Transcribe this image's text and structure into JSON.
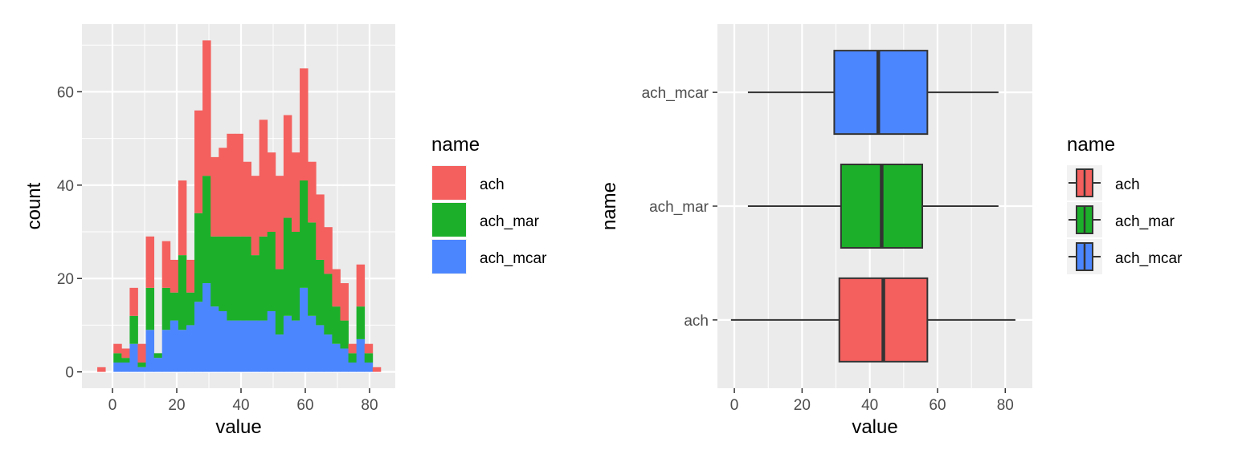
{
  "chart_data": [
    {
      "type": "bar",
      "subtype": "stacked-histogram",
      "xlabel": "value",
      "ylabel": "count",
      "xlim": [
        -9.5,
        88
      ],
      "ylim": [
        -3.5,
        74.5
      ],
      "x_ticks": [
        0,
        20,
        40,
        60,
        80
      ],
      "y_ticks": [
        0,
        20,
        40,
        60
      ],
      "grid": true,
      "bin_width": 2.52,
      "bin_start": -4.73,
      "stack_order": [
        "ach_mcar",
        "ach_mar",
        "ach"
      ],
      "series": [
        {
          "name": "ach_mcar",
          "color": "#4C86FF",
          "values": [
            0,
            0,
            2,
            2,
            6,
            1,
            9,
            3,
            9,
            11,
            9,
            10,
            15,
            19,
            14,
            13,
            11,
            11,
            11,
            11,
            11,
            13,
            8,
            12,
            11,
            18,
            12,
            10,
            8,
            6,
            5,
            2,
            7,
            2,
            0
          ]
        },
        {
          "name": "ach_mar",
          "color": "#1CB02A",
          "values": [
            0,
            0,
            2,
            1,
            6,
            1,
            9,
            1,
            9,
            6,
            16,
            7,
            19,
            23,
            15,
            16,
            18,
            18,
            18,
            14,
            18,
            17,
            14,
            21,
            19,
            23,
            20,
            14,
            13,
            8,
            6,
            2,
            7,
            2,
            0
          ]
        },
        {
          "name": "ach",
          "color": "#F3605E",
          "values": [
            1,
            0,
            2,
            2,
            6,
            4,
            11,
            0,
            10,
            7,
            16,
            7,
            22,
            29,
            17,
            19,
            22,
            22,
            16,
            17,
            25,
            17,
            20,
            22,
            17,
            24,
            13,
            14,
            10,
            8,
            8,
            2,
            9,
            2,
            1
          ]
        }
      ],
      "legend": {
        "title": "name",
        "position": "right",
        "entries": [
          "ach",
          "ach_mar",
          "ach_mcar"
        ]
      }
    },
    {
      "type": "boxplot",
      "orientation": "horizontal",
      "xlabel": "value",
      "ylabel": "name",
      "xlim": [
        -5,
        88
      ],
      "x_ticks": [
        0,
        20,
        40,
        60,
        80
      ],
      "grid": true,
      "categories": [
        "ach",
        "ach_mar",
        "ach_mcar"
      ],
      "boxes": [
        {
          "name": "ach",
          "color": "#F3605E",
          "whisker_low": -1,
          "q1": 31,
          "median": 44,
          "q3": 57,
          "whisker_high": 83
        },
        {
          "name": "ach_mar",
          "color": "#1CB02A",
          "whisker_low": 4,
          "q1": 31.5,
          "median": 43.5,
          "q3": 55.5,
          "whisker_high": 78
        },
        {
          "name": "ach_mcar",
          "color": "#4C86FF",
          "whisker_low": 4,
          "q1": 29.5,
          "median": 42.5,
          "q3": 57,
          "whisker_high": 78
        }
      ],
      "legend": {
        "title": "name",
        "position": "right",
        "entries": [
          "ach",
          "ach_mar",
          "ach_mcar"
        ]
      }
    }
  ]
}
